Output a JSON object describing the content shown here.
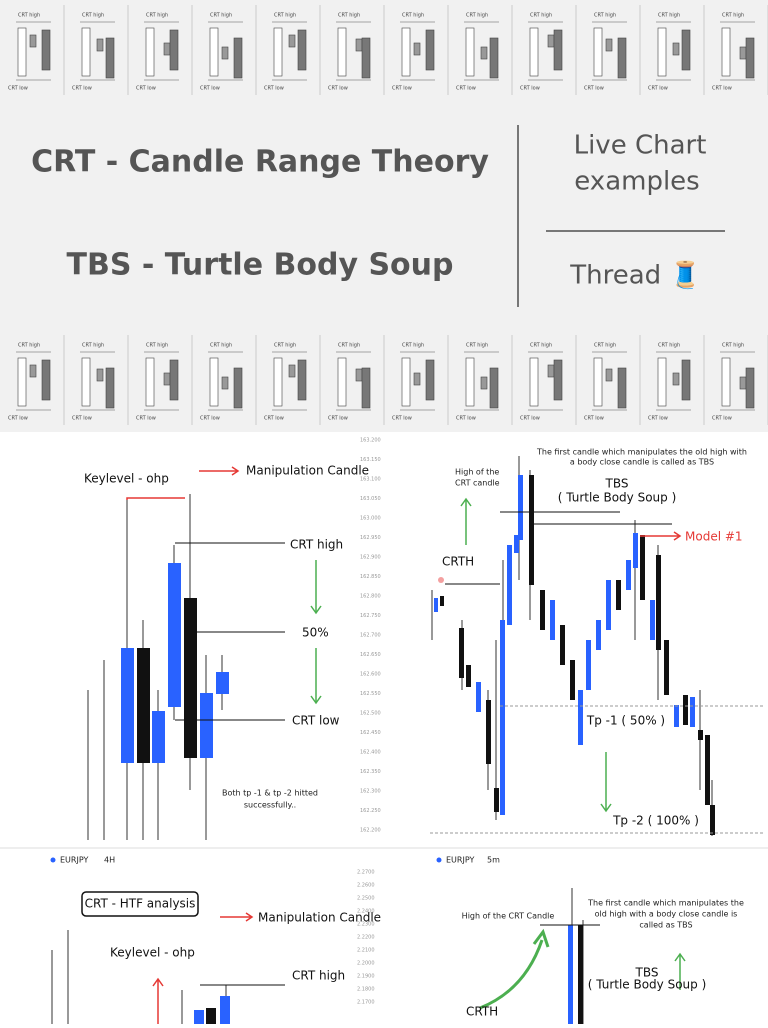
{
  "header": {
    "title1": "CRT - Candle Range Theory",
    "title2": "TBS - Turtle Body Soup",
    "side1": "Live Chart",
    "side2": "examples",
    "side3": "Thread 🧵",
    "thumb_labels": [
      "CRT high",
      "CRT low"
    ]
  },
  "panel1": {
    "keylevel": "Keylevel - ohp",
    "manipulation": "Manipulation Candle",
    "crt_high": "CRT high",
    "half": "50%",
    "crt_low": "CRT low",
    "note1": "Both tp -1 & tp -2 hitted",
    "note2": "successfully..",
    "symbol": "EURJPY",
    "timeframe": "4H",
    "price_labels": [
      "163.200",
      "163.150",
      "163.100",
      "163.050",
      "163.000",
      "162.950",
      "162.900",
      "162.850",
      "162.800",
      "162.750",
      "162.700",
      "162.650",
      "162.600",
      "162.550",
      "162.500",
      "162.450",
      "162.400",
      "162.350",
      "162.300",
      "162.250",
      "162.200"
    ]
  },
  "panel2": {
    "note1": "The first candle which manipulates the old high with",
    "note2": "a body close candle is called as TBS",
    "high1": "High of the",
    "high2": "CRT candle",
    "tbs": "TBS",
    "tbs_full": "( Turtle Body Soup )",
    "model": "Model #1",
    "crth": "CRTH",
    "tp1": "Tp -1 ( 50% )",
    "tp2": "Tp -2 ( 100% )",
    "symbol": "EURJPY",
    "timeframe": "5m"
  },
  "panel3": {
    "title": "CRT - HTF analysis",
    "manipulation": "Manipulation Candle",
    "keylevel": "Keylevel - ohp",
    "crt_high": "CRT high",
    "price_labels": [
      "2.2700",
      "2.2600",
      "2.2500",
      "2.2400",
      "2.2300",
      "2.2200",
      "2.2100",
      "2.2000",
      "2.1900",
      "2.1800",
      "2.1700"
    ]
  },
  "panel4": {
    "high": "High of the CRT Candle",
    "note1": "The first candle which manipulates the",
    "note2": "old high with a body close candle is",
    "note3": "called as TBS",
    "tbs": "TBS",
    "tbs_full": "( Turtle Body Soup )",
    "crth": "CRTH"
  }
}
